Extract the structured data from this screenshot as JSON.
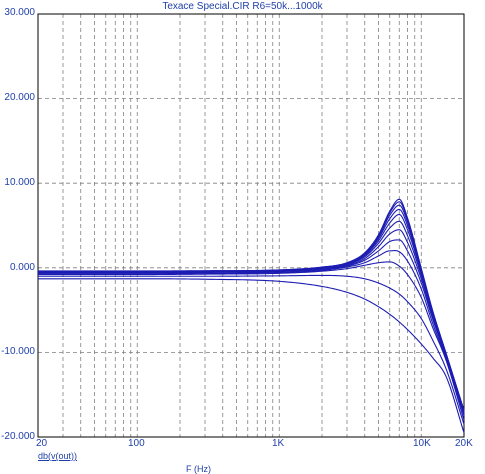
{
  "chart_data": {
    "type": "line",
    "title": "Texace Special.CIR R6=50k...1000k",
    "xlabel": "F (Hz)",
    "ylabel": "db(v(out))",
    "xscale": "log",
    "xlim": [
      20,
      20000
    ],
    "ylim": [
      -20,
      30
    ],
    "x_ticks": [
      "20",
      "100",
      "1K",
      "10K",
      "20K"
    ],
    "y_ticks": [
      "30.000",
      "20.000",
      "10.000",
      "0.000",
      "-10.000",
      "-20.000"
    ],
    "grid": true,
    "line_color": "#1d1db3",
    "series": [
      {
        "x": [
          20,
          100,
          300,
          1000,
          2000,
          3000,
          4000,
          5000,
          6000,
          7000,
          8000,
          10000,
          12000,
          15000,
          20000
        ],
        "y": [
          -1.3,
          -1.3,
          -1.35,
          -1.6,
          -2.2,
          -2.9,
          -3.7,
          -4.6,
          -5.5,
          -6.4,
          -7.3,
          -9.0,
          -10.6,
          -12.9,
          -19.5
        ]
      },
      {
        "x": [
          20,
          100,
          300,
          1000,
          2000,
          3000,
          4000,
          5000,
          6000,
          7000,
          8000,
          10000,
          12000,
          15000,
          20000
        ],
        "y": [
          -1.0,
          -1.0,
          -1.0,
          -0.95,
          -0.9,
          -1.0,
          -1.3,
          -1.8,
          -2.4,
          -3.1,
          -4.0,
          -6.0,
          -8.5,
          -12.0,
          -18.5
        ]
      },
      {
        "x": [
          20,
          100,
          300,
          1000,
          2000,
          3000,
          4000,
          5000,
          6000,
          7000,
          8000,
          10000,
          12000,
          15000,
          20000
        ],
        "y": [
          -0.8,
          -0.8,
          -0.75,
          -0.65,
          -0.4,
          -0.1,
          0.3,
          0.6,
          0.7,
          0.2,
          -0.8,
          -3.5,
          -7.0,
          -11.0,
          -18.0
        ]
      },
      {
        "x": [
          20,
          100,
          300,
          1000,
          2000,
          3000,
          4000,
          5000,
          6000,
          7000,
          8000,
          10000,
          12000,
          15000,
          20000
        ],
        "y": [
          -0.7,
          -0.7,
          -0.65,
          -0.55,
          -0.3,
          0.1,
          0.6,
          1.4,
          2.0,
          1.9,
          0.8,
          -2.5,
          -6.5,
          -10.8,
          -17.5
        ]
      },
      {
        "x": [
          20,
          100,
          300,
          1000,
          2000,
          3000,
          4000,
          5000,
          6000,
          7000,
          8000,
          10000,
          12000,
          15000,
          20000
        ],
        "y": [
          -0.6,
          -0.6,
          -0.55,
          -0.45,
          -0.2,
          0.2,
          0.9,
          2.0,
          3.1,
          3.3,
          2.0,
          -1.8,
          -6.0,
          -10.6,
          -17.3
        ]
      },
      {
        "x": [
          20,
          100,
          300,
          1000,
          2000,
          3000,
          4000,
          5000,
          6000,
          7000,
          8000,
          10000,
          12000,
          15000,
          20000
        ],
        "y": [
          -0.55,
          -0.55,
          -0.5,
          -0.4,
          -0.1,
          0.3,
          1.1,
          2.5,
          4.0,
          4.5,
          3.0,
          -1.3,
          -5.7,
          -10.5,
          -17.2
        ]
      },
      {
        "x": [
          20,
          100,
          300,
          1000,
          2000,
          3000,
          4000,
          5000,
          6000,
          7000,
          8000,
          10000,
          12000,
          15000,
          20000
        ],
        "y": [
          -0.5,
          -0.5,
          -0.45,
          -0.35,
          -0.05,
          0.4,
          1.3,
          2.9,
          4.7,
          5.5,
          3.8,
          -0.9,
          -5.5,
          -10.4,
          -17.1
        ]
      },
      {
        "x": [
          20,
          100,
          300,
          1000,
          2000,
          3000,
          4000,
          5000,
          6000,
          7000,
          8000,
          10000,
          12000,
          15000,
          20000
        ],
        "y": [
          -0.45,
          -0.45,
          -0.42,
          -0.32,
          0.0,
          0.45,
          1.45,
          3.2,
          5.3,
          6.3,
          4.5,
          -0.6,
          -5.3,
          -10.3,
          -17.0
        ]
      },
      {
        "x": [
          20,
          100,
          300,
          1000,
          2000,
          3000,
          4000,
          5000,
          6000,
          7000,
          8000,
          10000,
          12000,
          15000,
          20000
        ],
        "y": [
          -0.42,
          -0.42,
          -0.4,
          -0.3,
          0.02,
          0.5,
          1.55,
          3.45,
          5.8,
          6.9,
          5.0,
          -0.4,
          -5.2,
          -10.25,
          -17.0
        ]
      },
      {
        "x": [
          20,
          100,
          300,
          1000,
          2000,
          3000,
          4000,
          5000,
          6000,
          7000,
          8000,
          10000,
          12000,
          15000,
          20000
        ],
        "y": [
          -0.4,
          -0.4,
          -0.38,
          -0.28,
          0.05,
          0.55,
          1.65,
          3.65,
          6.2,
          7.4,
          5.4,
          -0.25,
          -5.1,
          -10.2,
          -16.9
        ]
      },
      {
        "x": [
          20,
          100,
          300,
          1000,
          2000,
          3000,
          4000,
          5000,
          6000,
          7000,
          8000,
          10000,
          12000,
          15000,
          20000
        ],
        "y": [
          -0.38,
          -0.38,
          -0.36,
          -0.26,
          0.07,
          0.58,
          1.72,
          3.8,
          6.5,
          7.8,
          5.7,
          -0.12,
          -5.05,
          -10.2,
          -16.9
        ]
      },
      {
        "x": [
          20,
          100,
          300,
          1000,
          2000,
          3000,
          4000,
          5000,
          6000,
          7000,
          8000,
          10000,
          12000,
          15000,
          20000
        ],
        "y": [
          -0.37,
          -0.37,
          -0.35,
          -0.25,
          0.08,
          0.6,
          1.78,
          3.9,
          6.7,
          8.1,
          5.9,
          -0.05,
          -5.0,
          -10.2,
          -16.85
        ]
      }
    ]
  }
}
